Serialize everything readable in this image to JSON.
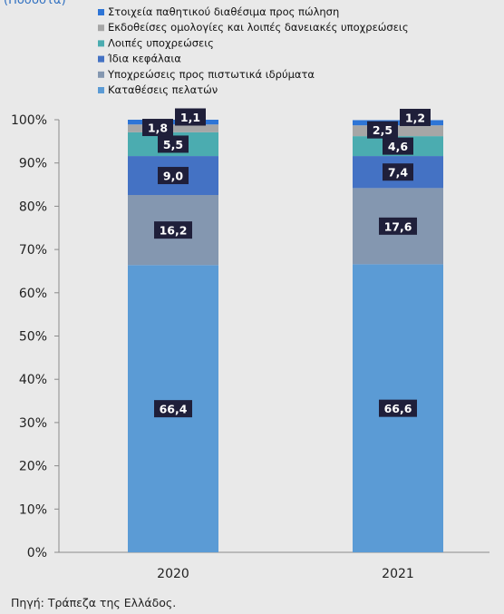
{
  "header_fragment": "(Ποσοστά)",
  "footer": {
    "source": "Πηγή: Τράπεζα της Ελλάδος."
  },
  "chart_data": {
    "type": "bar",
    "stacked": true,
    "categories": [
      "2020",
      "2021"
    ],
    "ylim": [
      0,
      100
    ],
    "y_ticks": [
      "0%",
      "10%",
      "20%",
      "30%",
      "40%",
      "50%",
      "60%",
      "70%",
      "80%",
      "90%",
      "100%"
    ],
    "grid": false,
    "legend_position": "top-left",
    "series": [
      {
        "name": "Καταθέσεις πελατών",
        "values": [
          66.4,
          66.6
        ],
        "labels": [
          "66,4",
          "66,6"
        ],
        "color": "#5b9bd5"
      },
      {
        "name": "Υποχρεώσεις προς πιστωτικά ιδρύματα",
        "values": [
          16.2,
          17.6
        ],
        "labels": [
          "16,2",
          "17,6"
        ],
        "color": "#8497b0"
      },
      {
        "name": "Ίδια κεφάλαια",
        "values": [
          9.0,
          7.4
        ],
        "labels": [
          "9,0",
          "7,4"
        ],
        "color": "#4472c4"
      },
      {
        "name": "Λοιπές υποχρεώσεις",
        "values": [
          5.5,
          4.6
        ],
        "labels": [
          "5,5",
          "4,6"
        ],
        "color": "#4bacb0"
      },
      {
        "name": "Εκδοθείσες ομολογίες και λοιπές δανειακές υποχρεώσεις",
        "values": [
          1.8,
          2.5
        ],
        "labels": [
          "1,8",
          "2,5"
        ],
        "color": "#a6a6a6"
      },
      {
        "name": "Στοιχεία παθητικού διαθέσιμα προς πώληση",
        "values": [
          1.1,
          1.2
        ],
        "labels": [
          "1,1",
          "1,2"
        ],
        "color": "#2e75d6"
      }
    ]
  }
}
